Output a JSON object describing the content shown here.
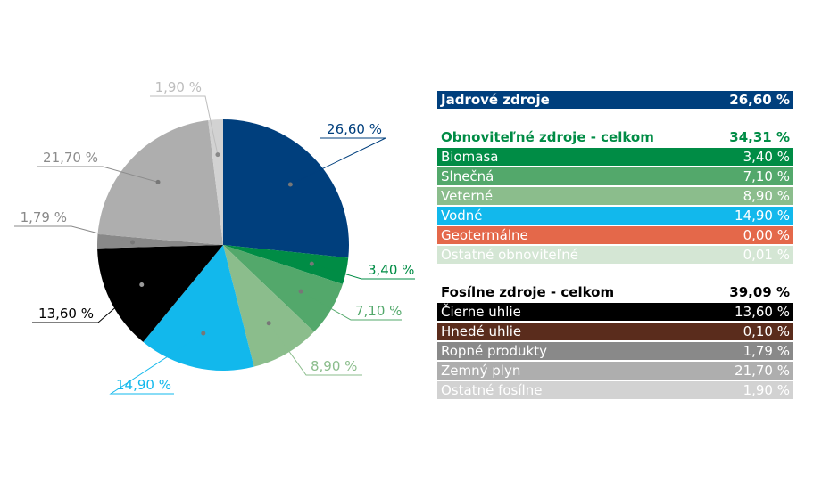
{
  "chart_data": {
    "type": "pie",
    "slices": [
      {
        "label": "26,60 %",
        "value": 26.6,
        "color": "#003f7d",
        "label_color": "#003f7d"
      },
      {
        "label": "3,40 %",
        "value": 3.4,
        "color": "#008c45",
        "label_color": "#008c45"
      },
      {
        "label": "7,10 %",
        "value": 7.1,
        "color": "#53a86b",
        "label_color": "#53a86b"
      },
      {
        "label": "8,90 %",
        "value": 8.9,
        "color": "#8bbd8c",
        "label_color": "#8bbd8c"
      },
      {
        "label": "14,90 %",
        "value": 14.9,
        "color": "#12b8ec",
        "label_color": "#12b8ec"
      },
      {
        "label": "13,60 %",
        "value": 13.6,
        "color": "#000000",
        "label_color": "#000000"
      },
      {
        "label": "1,79 %",
        "value": 1.79,
        "color": "#898989",
        "label_color": "#898989"
      },
      {
        "label": "21,70 %",
        "value": 21.7,
        "color": "#aeaeae",
        "label_color": "#8c8c8c"
      },
      {
        "label": "1,90 %",
        "value": 1.9,
        "color": "#d2d2d2",
        "label_color": "#bdbdbd"
      }
    ]
  },
  "legend": {
    "nuclear": {
      "label": "Jadrové zdroje",
      "value": "26,60 %",
      "bg": "#003f7d",
      "fg": "#ffffff"
    },
    "renewable_header": {
      "label": "Obnoviteľné zdroje - celkom",
      "value": "34,31 %",
      "fg": "#008c45"
    },
    "renewable_items": [
      {
        "label": "Biomasa",
        "value": "3,40 %",
        "bg": "#008c45",
        "fg": "#ffffff"
      },
      {
        "label": "Slnečná",
        "value": "7,10 %",
        "bg": "#53a86b",
        "fg": "#ffffff"
      },
      {
        "label": "Veterné",
        "value": "8,90 %",
        "bg": "#8bbd8c",
        "fg": "#ffffff"
      },
      {
        "label": "Vodné",
        "value": "14,90 %",
        "bg": "#12b8ec",
        "fg": "#ffffff"
      },
      {
        "label": "Geotermálne",
        "value": "0,00 %",
        "bg": "#e4684a",
        "fg": "#ffffff"
      },
      {
        "label": "Ostatné obnoviteľné",
        "value": "0,01 %",
        "bg": "#d4e6d4",
        "fg": "#ffffff"
      }
    ],
    "fossil_header": {
      "label": "Fosílne zdroje - celkom",
      "value": "39,09 %",
      "fg": "#000000"
    },
    "fossil_items": [
      {
        "label": "Čierne uhlie",
        "value": "13,60 %",
        "bg": "#000000",
        "fg": "#ffffff"
      },
      {
        "label": "Hnedé uhlie",
        "value": "0,10 %",
        "bg": "#5a2c1c",
        "fg": "#ffffff"
      },
      {
        "label": "Ropné produkty",
        "value": "1,79 %",
        "bg": "#898989",
        "fg": "#ffffff"
      },
      {
        "label": "Zemný plyn",
        "value": "21,70 %",
        "bg": "#aeaeae",
        "fg": "#ffffff"
      },
      {
        "label": "Ostatné fosílne",
        "value": "1,90 %",
        "bg": "#d2d2d2",
        "fg": "#ffffff"
      }
    ]
  }
}
